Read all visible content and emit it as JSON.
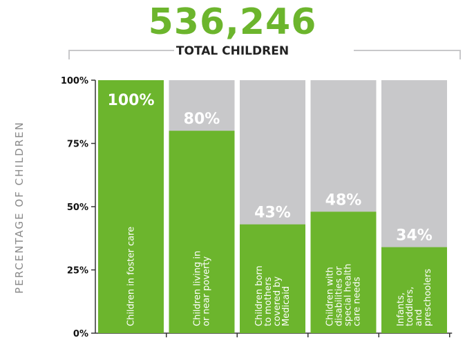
{
  "header": {
    "total_value": "536,246",
    "total_label": "TOTAL CHILDREN"
  },
  "colors": {
    "green": "#6cb52d",
    "gray": "#c8c8ca",
    "axis": "#333333",
    "label": "#ffffff"
  },
  "chart_data": {
    "type": "bar",
    "stacked_to": 100,
    "ylabel": "PERCENTAGE OF CHILDREN",
    "ylim": [
      0,
      100
    ],
    "yticks": [
      0,
      25,
      50,
      75,
      100
    ],
    "ytick_labels": [
      "0%",
      "25%",
      "50%",
      "75%",
      "100%"
    ],
    "categories": [
      "Children in foster care",
      "Children living in or near poverty",
      "Children born to mothers covered by Medicaid",
      "Children with disabilities or special health care needs",
      "Infants, toddlers, and preschoolers"
    ],
    "category_lines": [
      [
        "Children in foster care"
      ],
      [
        "Children living in",
        "or near poverty"
      ],
      [
        "Children born",
        "to mothers",
        "covered by",
        "Medicaid"
      ],
      [
        "Children with",
        "disabilities or",
        "special health",
        "care needs"
      ],
      [
        "Infants,",
        "toddlers,",
        "and",
        "preschoolers"
      ]
    ],
    "values": [
      100,
      80,
      43,
      48,
      34
    ],
    "value_labels": [
      "100%",
      "80%",
      "43%",
      "48%",
      "34%"
    ]
  }
}
